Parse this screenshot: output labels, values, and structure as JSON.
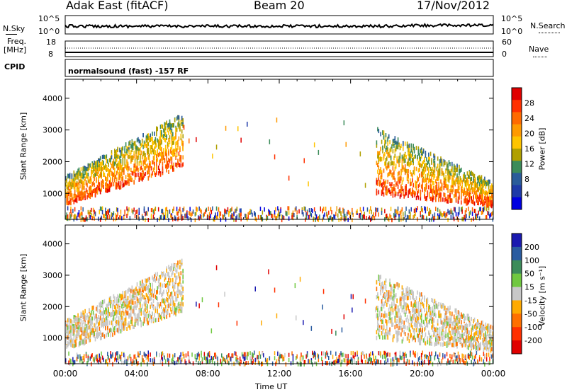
{
  "header": {
    "station": "Adak East (fitACF)",
    "beam": "Beam 20",
    "date": "17/Nov/2012"
  },
  "top_strip": {
    "nsky_label": "N.Sky",
    "nsky_ticks": [
      "10^5",
      "10^0"
    ],
    "nsearch_label": "N.Search",
    "nsearch_ticks": [
      "10^5",
      "10^0"
    ]
  },
  "freq_strip": {
    "freq_label_1": "Freq.",
    "freq_label_2": "[MHz]",
    "freq_ticks": [
      "18",
      "8"
    ],
    "nave_label": "Nave",
    "nave_ticks": [
      "60",
      "0"
    ]
  },
  "cpid": {
    "label": "CPID",
    "text": "normalsound (fast) -157 RF"
  },
  "power_colorbar": {
    "label": "Power [dB]",
    "ticks": [
      "28",
      "24",
      "20",
      "16",
      "12",
      "8",
      "4"
    ],
    "colors": [
      "#e00000",
      "#ff3000",
      "#ff6a00",
      "#ff9a00",
      "#ffc400",
      "#b0a000",
      "#3c8c5a",
      "#2a5c9a",
      "#1e3aa8",
      "#0000e0"
    ]
  },
  "velocity_colorbar": {
    "label": "Velocity [m s⁻¹]",
    "ticks": [
      "200",
      "100",
      "50",
      "15",
      "-15",
      "-50",
      "-100",
      "-200"
    ],
    "colors": [
      "#1a1ab0",
      "#2a5ca0",
      "#3c8c5a",
      "#70c840",
      "#c8c8c8",
      "#ffaa00",
      "#ff7000",
      "#ff3000",
      "#e00000"
    ]
  },
  "chart_data": [
    {
      "type": "heatmap",
      "title": "",
      "xlabel": "Time UT",
      "ylabel": "Slant Range [km]",
      "x_ticks": [
        "00:00",
        "04:00",
        "08:00",
        "12:00",
        "16:00",
        "20:00",
        "00:00"
      ],
      "y_ticks": [
        "4000",
        "3000",
        "2000",
        "1000"
      ],
      "xlim_hours": [
        0,
        24
      ],
      "ylim_km": [
        180,
        4600
      ],
      "colorbar": "Power [dB]",
      "clim": [
        0,
        30
      ]
    },
    {
      "type": "heatmap",
      "title": "",
      "xlabel": "Time UT",
      "ylabel": "Slant Range [km]",
      "x_ticks": [
        "00:00",
        "04:00",
        "08:00",
        "12:00",
        "16:00",
        "20:00",
        "00:00"
      ],
      "y_ticks": [
        "4000",
        "3000",
        "2000",
        "1000"
      ],
      "xlim_hours": [
        0,
        24
      ],
      "ylim_km": [
        180,
        4600
      ],
      "colorbar": "Velocity [m s⁻¹]",
      "clim": [
        -250,
        250
      ]
    }
  ]
}
